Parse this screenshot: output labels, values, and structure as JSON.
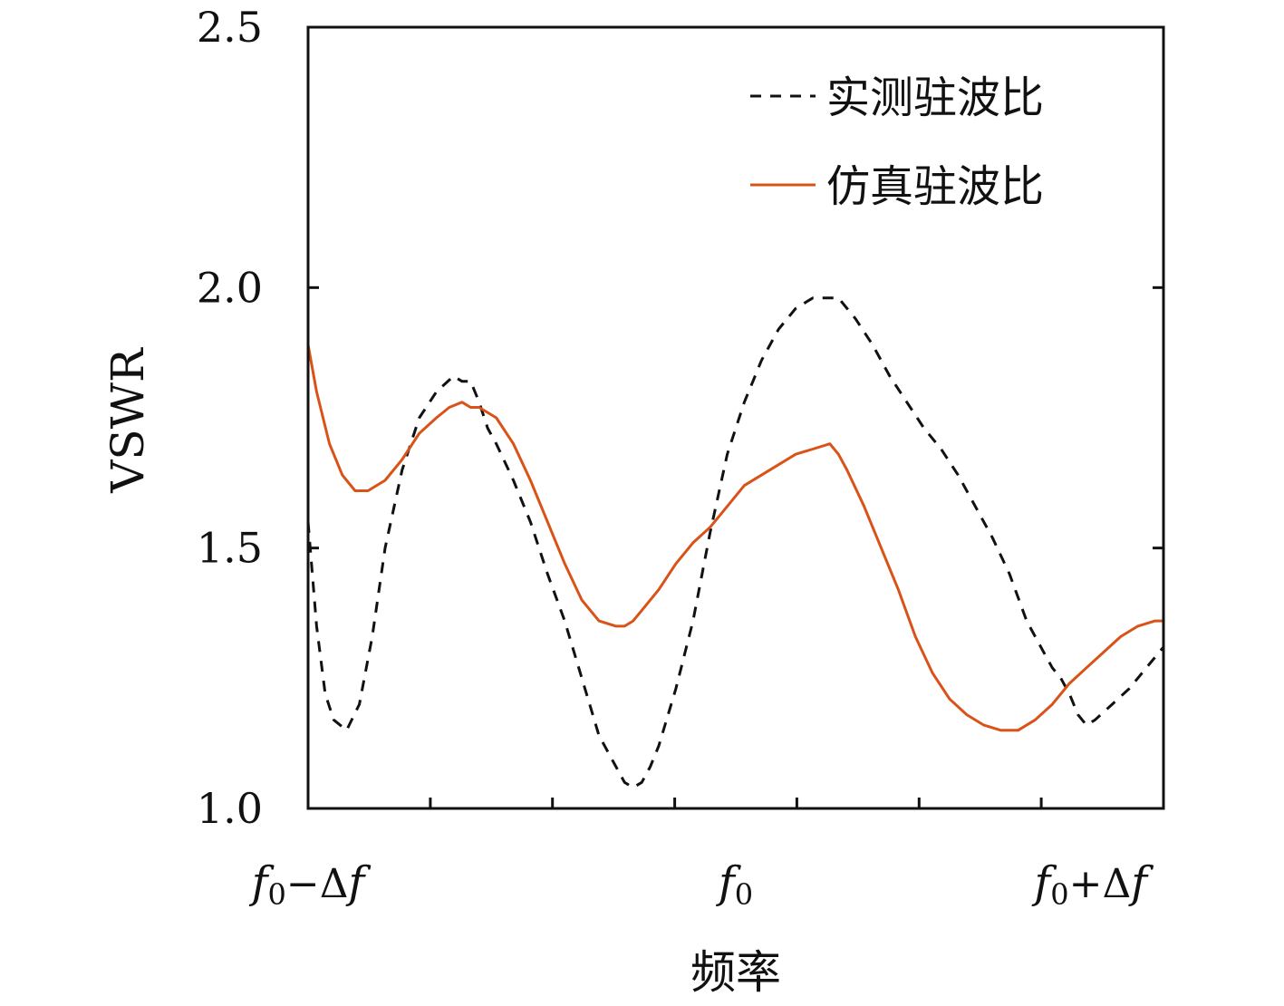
{
  "chart_data": {
    "type": "line",
    "xlabel": "频率",
    "ylabel": "VSWR",
    "ylim": [
      1.0,
      2.5
    ],
    "yticks": [
      "1.0",
      "1.5",
      "2.0",
      "2.5"
    ],
    "xlim": [
      0,
      1
    ],
    "xtick_labels": [
      {
        "x": 0.0,
        "main": "f",
        "sub": "0",
        "op": "−",
        "delta": "Δ",
        "tail": "f"
      },
      {
        "x": 0.5,
        "main": "f",
        "sub": "0",
        "op": "",
        "delta": "",
        "tail": ""
      },
      {
        "x": 0.915,
        "main": "f",
        "sub": "0",
        "op": "+",
        "delta": "Δ",
        "tail": "f"
      }
    ],
    "minor_xticks": [
      0.1429,
      0.2857,
      0.4286,
      0.5714,
      0.7143,
      0.8571
    ],
    "legend_position": "top-right",
    "series": [
      {
        "name": "实测驻波比",
        "style": "dashed",
        "color": "#111111",
        "x": [
          0.0,
          0.01,
          0.02,
          0.03,
          0.045,
          0.06,
          0.075,
          0.09,
          0.11,
          0.13,
          0.15,
          0.17,
          0.18,
          0.19,
          0.2,
          0.21,
          0.22,
          0.24,
          0.26,
          0.28,
          0.3,
          0.32,
          0.34,
          0.36,
          0.37,
          0.38,
          0.39,
          0.4,
          0.41,
          0.43,
          0.45,
          0.47,
          0.49,
          0.51,
          0.52,
          0.53,
          0.55,
          0.57,
          0.59,
          0.6,
          0.62,
          0.64,
          0.66,
          0.68,
          0.7,
          0.72,
          0.74,
          0.76,
          0.78,
          0.8,
          0.82,
          0.84,
          0.86,
          0.87,
          0.88,
          0.89,
          0.9,
          0.91,
          0.92,
          0.94,
          0.96,
          0.98,
          1.0
        ],
        "y": [
          1.55,
          1.35,
          1.22,
          1.17,
          1.15,
          1.2,
          1.33,
          1.5,
          1.65,
          1.75,
          1.8,
          1.83,
          1.82,
          1.82,
          1.78,
          1.73,
          1.7,
          1.63,
          1.55,
          1.45,
          1.36,
          1.25,
          1.14,
          1.08,
          1.05,
          1.04,
          1.05,
          1.08,
          1.12,
          1.23,
          1.36,
          1.53,
          1.68,
          1.78,
          1.82,
          1.86,
          1.92,
          1.96,
          1.98,
          1.98,
          1.98,
          1.94,
          1.89,
          1.83,
          1.78,
          1.73,
          1.69,
          1.64,
          1.58,
          1.52,
          1.45,
          1.36,
          1.3,
          1.27,
          1.25,
          1.22,
          1.18,
          1.16,
          1.17,
          1.2,
          1.23,
          1.27,
          1.31
        ]
      },
      {
        "name": "仿真驻波比",
        "style": "solid",
        "color": "#d95319",
        "x": [
          0.0,
          0.01,
          0.025,
          0.04,
          0.055,
          0.07,
          0.09,
          0.11,
          0.13,
          0.15,
          0.165,
          0.18,
          0.19,
          0.2,
          0.22,
          0.24,
          0.26,
          0.28,
          0.3,
          0.32,
          0.34,
          0.36,
          0.37,
          0.38,
          0.39,
          0.41,
          0.43,
          0.45,
          0.47,
          0.49,
          0.51,
          0.53,
          0.55,
          0.57,
          0.59,
          0.61,
          0.62,
          0.63,
          0.65,
          0.67,
          0.69,
          0.71,
          0.73,
          0.75,
          0.77,
          0.79,
          0.81,
          0.83,
          0.85,
          0.87,
          0.89,
          0.91,
          0.93,
          0.95,
          0.97,
          0.99,
          1.0
        ],
        "y": [
          1.89,
          1.8,
          1.7,
          1.64,
          1.61,
          1.61,
          1.63,
          1.67,
          1.72,
          1.75,
          1.77,
          1.78,
          1.77,
          1.77,
          1.75,
          1.7,
          1.63,
          1.55,
          1.47,
          1.4,
          1.36,
          1.35,
          1.35,
          1.36,
          1.38,
          1.42,
          1.47,
          1.51,
          1.54,
          1.58,
          1.62,
          1.64,
          1.66,
          1.68,
          1.69,
          1.7,
          1.68,
          1.65,
          1.58,
          1.5,
          1.42,
          1.33,
          1.26,
          1.21,
          1.18,
          1.16,
          1.15,
          1.15,
          1.17,
          1.2,
          1.24,
          1.27,
          1.3,
          1.33,
          1.35,
          1.36,
          1.36
        ]
      }
    ]
  }
}
